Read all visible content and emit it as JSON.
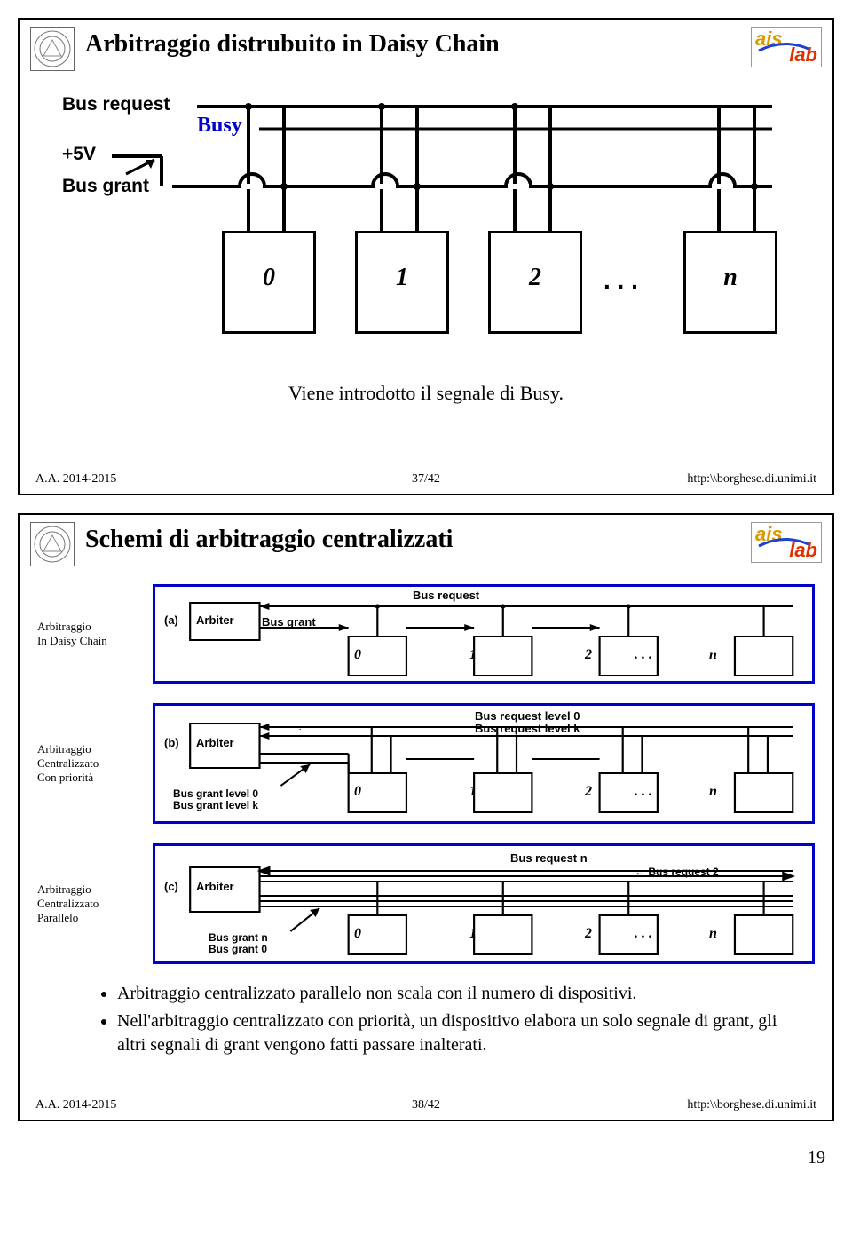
{
  "slide1": {
    "title": "Arbitraggio distrubuito in Daisy Chain",
    "labels": {
      "bus_request": "Bus request",
      "busy": "Busy",
      "plus5v": "+5V",
      "bus_grant": "Bus grant"
    },
    "boxes": [
      "0",
      "1",
      "2",
      "n"
    ],
    "ellipsis": ". . .",
    "caption": "Viene introdotto il segnale di Busy.",
    "footer_left": "A.A. 2014-2015",
    "footer_mid": "37/42",
    "footer_right": "http:\\\\borghese.di.unimi.it"
  },
  "slide2": {
    "title": "Schemi di arbitraggio centralizzati",
    "schemes": [
      {
        "label": "Arbitraggio\nIn Daisy Chain",
        "tag": "(a)",
        "diagram": {
          "arbiter": "Arbiter",
          "top_label": "Bus request",
          "grant_label": "Bus grant",
          "boxes": [
            "0",
            "1",
            "2",
            "n"
          ],
          "ellipsis": ". . ."
        }
      },
      {
        "label": "Arbitraggio\nCentralizzato\nCon priorità",
        "tag": "(b)",
        "diagram": {
          "arbiter": "Arbiter",
          "req0": "Bus request level 0",
          "reqk": "Bus request level k",
          "grant0": "Bus grant level 0",
          "grantk": "Bus grant level k",
          "boxes": [
            "0",
            "1",
            "2",
            "n"
          ],
          "ellipsis": ". . ."
        }
      },
      {
        "label": "Arbitraggio\nCentralizzato\nParallelo",
        "tag": "(c)",
        "diagram": {
          "arbiter": "Arbiter",
          "reqn": "Bus request n",
          "req2": "Bus request 2",
          "grantn": "Bus grant n",
          "grant0": "Bus grant 0",
          "boxes": [
            "0",
            "1",
            "2",
            "n"
          ],
          "ellipsis": ". . ."
        }
      }
    ],
    "bullets": [
      "Arbitraggio centralizzato parallelo non scala con il numero di dispositivi.",
      "Nell'arbitraggio centralizzato con priorità, un dispositivo elabora un solo segnale di grant, gli altri segnali di grant vengono fatti passare inalterati."
    ],
    "footer_left": "A.A. 2014-2015",
    "footer_mid": "38/42",
    "footer_right": "http:\\\\borghese.di.unimi.it"
  },
  "page_number": "19",
  "colors": {
    "frame_blue": "#0000cc",
    "logo_gold": "#d89a00",
    "logo_red": "#e03000",
    "black": "#000000",
    "background": "#ffffff"
  }
}
